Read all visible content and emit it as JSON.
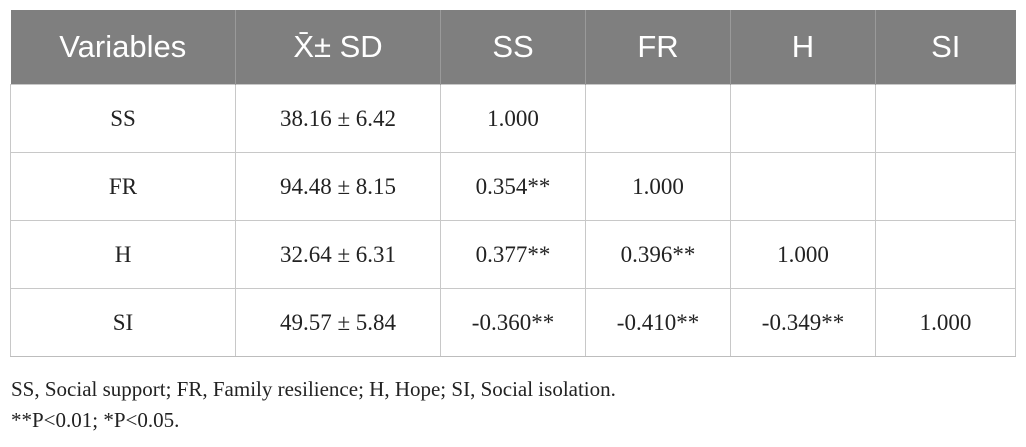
{
  "table": {
    "headers": [
      "Variables",
      "X̄± SD",
      "SS",
      "FR",
      "H",
      "SI"
    ],
    "rows": [
      [
        "SS",
        "38.16 ± 6.42",
        "1.000",
        "",
        "",
        ""
      ],
      [
        "FR",
        "94.48 ± 8.15",
        "0.354**",
        "1.000",
        "",
        ""
      ],
      [
        "H",
        "32.64 ± 6.31",
        "0.377**",
        "0.396**",
        "1.000",
        ""
      ],
      [
        "SI",
        "49.57 ± 5.84",
        "-0.360**",
        "-0.410**",
        "-0.349**",
        "1.000"
      ]
    ]
  },
  "notes": [
    "SS, Social support; FR, Family resilience; H, Hope; SI, Social isolation.",
    "**P<0.01; *P<0.05."
  ]
}
